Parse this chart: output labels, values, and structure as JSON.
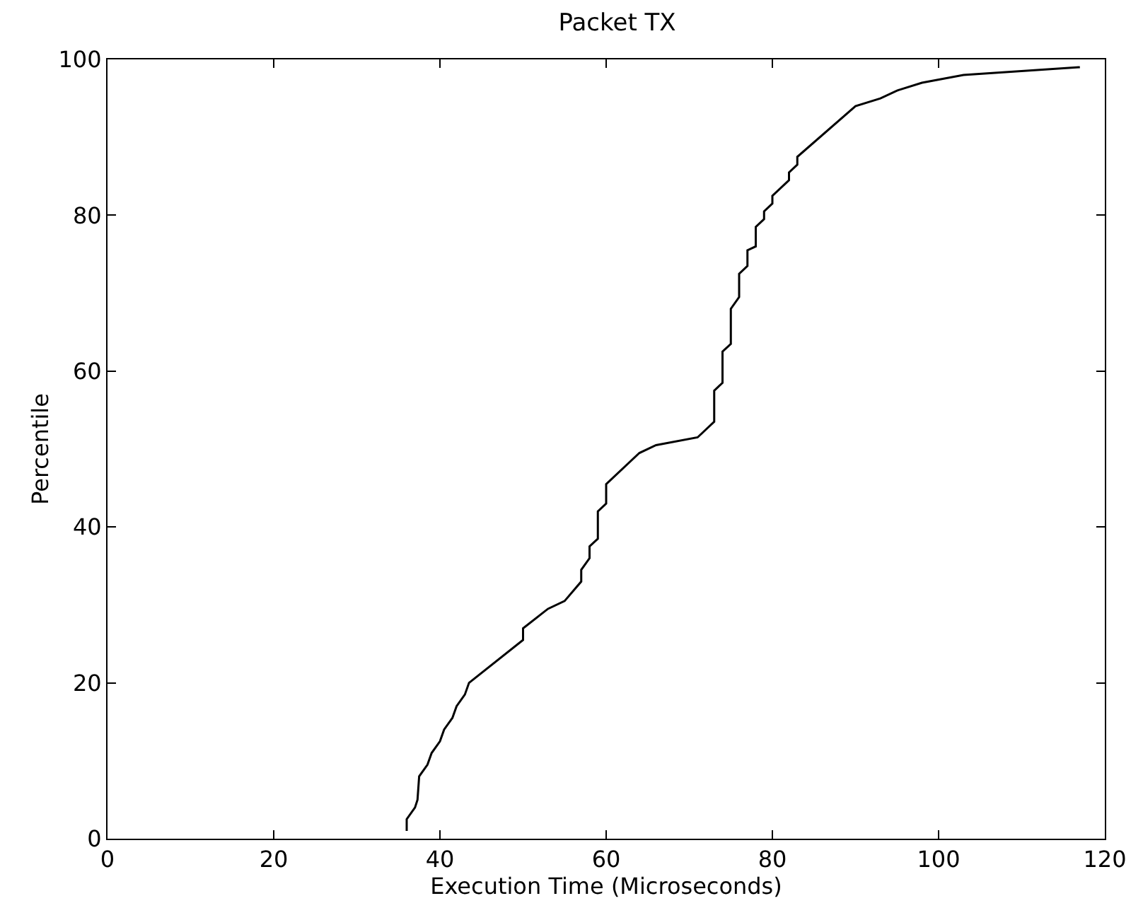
{
  "chart_data": {
    "type": "line",
    "title": "Packet TX",
    "xlabel": "Execution Time (Microseconds)",
    "ylabel": "Percentile",
    "xlim": [
      0,
      120
    ],
    "xticks": [
      0,
      20,
      40,
      60,
      80,
      100,
      120
    ],
    "ylim": [
      0,
      100
    ],
    "yticks": [
      0,
      20,
      40,
      60,
      80,
      100
    ],
    "grid": false,
    "marker": "none",
    "line_style": "solid",
    "series": [
      {
        "color": "#000000",
        "x": [
          36,
          36,
          37,
          37.3,
          37.5,
          38.5,
          39,
          40,
          40.5,
          41.5,
          42,
          43,
          43.5,
          50,
          50,
          53,
          55,
          57,
          57,
          58,
          58,
          59,
          59,
          60,
          60,
          64,
          66,
          71,
          73,
          73,
          74,
          74,
          75,
          75,
          76,
          76,
          77,
          77,
          78,
          78,
          79,
          79,
          80,
          80,
          82,
          82,
          83,
          83,
          90,
          93,
          95,
          98,
          103,
          117
        ],
        "values": [
          1,
          2.5,
          4,
          5,
          8,
          9.5,
          11,
          12.5,
          14,
          15.5,
          17,
          18.5,
          20,
          25.5,
          27,
          29.5,
          30.5,
          33,
          34.5,
          36,
          37.5,
          38.5,
          42,
          43,
          45.5,
          49.5,
          50.5,
          51.5,
          53.5,
          57.5,
          58.5,
          62.5,
          63.5,
          68,
          69.5,
          72.5,
          73.5,
          75.5,
          76,
          78.5,
          79.5,
          80.5,
          81.5,
          82.5,
          84.5,
          85.5,
          86.5,
          87.5,
          94,
          95,
          96,
          97,
          98,
          99
        ]
      }
    ]
  }
}
